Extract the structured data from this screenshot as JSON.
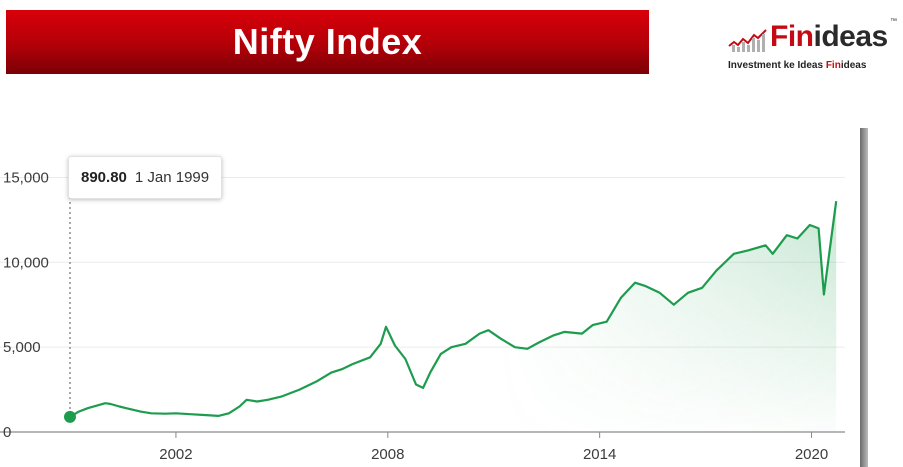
{
  "header": {
    "title": "Nifty Index"
  },
  "logo": {
    "name_part1": "Fin",
    "name_part2": "ideas",
    "trademark": "™",
    "tagline_prefix": "Investment ke Ideas ",
    "tagline_accent": "Fin",
    "tagline_suffix": "ideas"
  },
  "tooltip": {
    "value": "890.80",
    "date": "1 Jan 1999"
  },
  "colors": {
    "line": "#1e9c4e",
    "banner": "#c8000a",
    "brand_red": "#c40a12"
  },
  "chart_data": {
    "type": "area",
    "title": "",
    "xlabel": "",
    "ylabel": "",
    "xlim": [
      1999,
      2020.75
    ],
    "ylim": [
      0,
      16500
    ],
    "y_ticks": [
      0,
      5000,
      10000,
      15000
    ],
    "y_tick_labels": [
      "0",
      "5,000",
      "10,000",
      "15,000"
    ],
    "x_ticks": [
      2002,
      2008,
      2014,
      2020
    ],
    "x_tick_labels": [
      "2002",
      "2008",
      "2014",
      "2020"
    ],
    "grid": "horizontal",
    "series": [
      {
        "x": [
          1999.0,
          1999.25,
          1999.5,
          1999.75,
          2000.0,
          2000.15,
          2000.4,
          2000.7,
          2001.0,
          2001.3,
          2001.7,
          2002.0,
          2002.4,
          2002.8,
          2003.2,
          2003.5,
          2003.8,
          2004.0,
          2004.3,
          2004.6,
          2005.0,
          2005.5,
          2006.0,
          2006.4,
          2006.7,
          2007.0,
          2007.5,
          2007.8,
          2007.95,
          2008.2,
          2008.5,
          2008.8,
          2009.0,
          2009.2,
          2009.5,
          2009.8,
          2010.2,
          2010.6,
          2010.85,
          2011.2,
          2011.6,
          2011.95,
          2012.3,
          2012.7,
          2013.0,
          2013.5,
          2013.8,
          2014.2,
          2014.6,
          2015.0,
          2015.3,
          2015.7,
          2016.1,
          2016.5,
          2016.9,
          2017.3,
          2017.8,
          2018.2,
          2018.7,
          2018.9,
          2019.3,
          2019.6,
          2019.95,
          2020.2,
          2020.35,
          2020.5,
          2020.7
        ],
        "y": [
          890.8,
          1200,
          1400,
          1550,
          1700,
          1650,
          1500,
          1350,
          1200,
          1100,
          1080,
          1100,
          1050,
          1000,
          950,
          1100,
          1500,
          1900,
          1800,
          1900,
          2100,
          2500,
          3000,
          3500,
          3700,
          4000,
          4400,
          5200,
          6200,
          5100,
          4300,
          2800,
          2600,
          3500,
          4600,
          5000,
          5200,
          5800,
          6000,
          5500,
          5000,
          4900,
          5300,
          5700,
          5900,
          5800,
          6300,
          6500,
          7900,
          8800,
          8600,
          8200,
          7500,
          8200,
          8500,
          9500,
          10500,
          10700,
          11000,
          10500,
          11600,
          11400,
          12200,
          12000,
          8100,
          10500,
          13600
        ]
      }
    ]
  }
}
